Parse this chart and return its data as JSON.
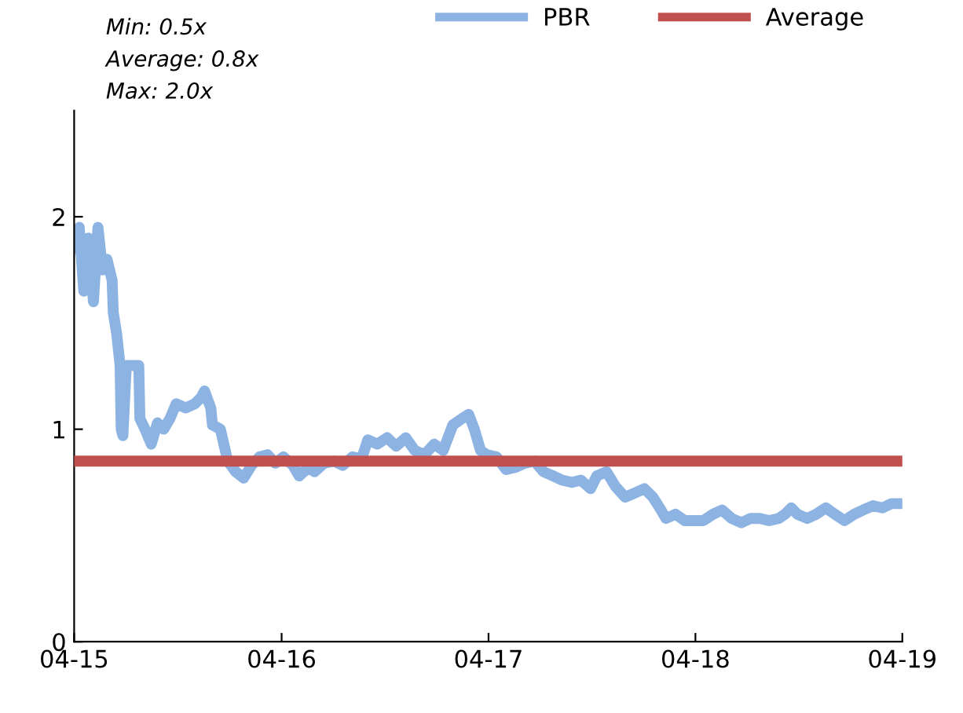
{
  "chart_data": {
    "type": "line",
    "annotations": [
      "Min: 0.5x",
      "Average: 0.8x",
      "Max: 2.0x"
    ],
    "xlim": [
      "2015-04-01",
      "2019-04-01"
    ],
    "xticks": [
      {
        "value": "2015-04-01",
        "label": "04-15"
      },
      {
        "value": "2016-04-01",
        "label": "04-16"
      },
      {
        "value": "2017-04-01",
        "label": "04-17"
      },
      {
        "value": "2018-04-01",
        "label": "04-18"
      },
      {
        "value": "2019-04-01",
        "label": "04-19"
      }
    ],
    "ylim": [
      0,
      2.5
    ],
    "yticks": [
      0,
      1,
      2
    ],
    "grid": false,
    "legend": "top right",
    "line_style": "solid",
    "marker": "none",
    "series": [
      {
        "name": "PBR",
        "color": "#8db3e2",
        "x": [
          "2015-04-01",
          "2015-04-10",
          "2015-04-18",
          "2015-04-26",
          "2015-05-05",
          "2015-05-13",
          "2015-05-21",
          "2015-05-29",
          "2015-06-07",
          "2015-06-09",
          "2015-06-15",
          "2015-06-21",
          "2015-06-23",
          "2015-06-26",
          "2015-07-02",
          "2015-07-24",
          "2015-07-26",
          "2015-08-04",
          "2015-08-15",
          "2015-08-26",
          "2015-09-06",
          "2015-09-17",
          "2015-09-28",
          "2015-10-15",
          "2015-10-31",
          "2015-11-11",
          "2015-11-17",
          "2015-11-28",
          "2015-12-01",
          "2015-12-15",
          "2015-12-28",
          "2016-01-11",
          "2016-01-25",
          "2016-02-08",
          "2016-02-22",
          "2016-03-07",
          "2016-03-21",
          "2016-04-04",
          "2016-04-21",
          "2016-05-02",
          "2016-05-18",
          "2016-05-29",
          "2016-06-15",
          "2016-07-02",
          "2016-07-18",
          "2016-08-04",
          "2016-08-20",
          "2016-08-31",
          "2016-09-17",
          "2016-10-04",
          "2016-10-20",
          "2016-11-06",
          "2016-11-22",
          "2016-12-09",
          "2016-12-26",
          "2017-01-11",
          "2017-01-28",
          "2017-02-13",
          "2017-02-25",
          "2017-03-07",
          "2017-03-18",
          "2017-03-29",
          "2017-04-15",
          "2017-05-02",
          "2017-05-18",
          "2017-06-04",
          "2017-06-21",
          "2017-07-07",
          "2017-07-24",
          "2017-08-09",
          "2017-08-26",
          "2017-09-11",
          "2017-09-28",
          "2017-10-09",
          "2017-10-26",
          "2017-11-11",
          "2017-11-28",
          "2017-12-15",
          "2018-01-01",
          "2018-01-16",
          "2018-01-28",
          "2018-02-08",
          "2018-02-25",
          "2018-03-13",
          "2018-03-29",
          "2018-04-15",
          "2018-05-02",
          "2018-05-18",
          "2018-06-04",
          "2018-06-21",
          "2018-07-07",
          "2018-07-24",
          "2018-08-09",
          "2018-08-26",
          "2018-09-06",
          "2018-09-17",
          "2018-09-28",
          "2018-10-15",
          "2018-10-31",
          "2018-11-17",
          "2018-12-03",
          "2018-12-20",
          "2019-01-06",
          "2019-01-22",
          "2019-02-08",
          "2019-02-25",
          "2019-03-13",
          "2019-04-01"
        ],
        "values": [
          1.85,
          1.95,
          1.65,
          1.9,
          1.6,
          1.95,
          1.75,
          1.8,
          1.7,
          1.55,
          1.45,
          1.3,
          1.0,
          0.97,
          1.3,
          1.3,
          1.05,
          1.0,
          0.93,
          1.03,
          1.0,
          1.05,
          1.12,
          1.1,
          1.12,
          1.15,
          1.18,
          1.1,
          1.02,
          1.0,
          0.85,
          0.8,
          0.77,
          0.83,
          0.87,
          0.88,
          0.84,
          0.87,
          0.83,
          0.78,
          0.82,
          0.8,
          0.84,
          0.85,
          0.83,
          0.87,
          0.86,
          0.95,
          0.93,
          0.96,
          0.92,
          0.96,
          0.9,
          0.88,
          0.93,
          0.9,
          1.02,
          1.05,
          1.07,
          1.0,
          0.9,
          0.88,
          0.87,
          0.81,
          0.82,
          0.84,
          0.85,
          0.8,
          0.78,
          0.76,
          0.75,
          0.76,
          0.72,
          0.78,
          0.8,
          0.73,
          0.68,
          0.7,
          0.72,
          0.68,
          0.63,
          0.58,
          0.6,
          0.57,
          0.57,
          0.57,
          0.6,
          0.62,
          0.58,
          0.56,
          0.58,
          0.58,
          0.57,
          0.58,
          0.6,
          0.63,
          0.6,
          0.58,
          0.6,
          0.63,
          0.6,
          0.57,
          0.6,
          0.62,
          0.64,
          0.63,
          0.65,
          0.65
        ]
      },
      {
        "name": "Average",
        "color": "#c0504d",
        "x": [
          "2015-04-01",
          "2019-04-01"
        ],
        "values": [
          0.85,
          0.85
        ]
      }
    ]
  }
}
